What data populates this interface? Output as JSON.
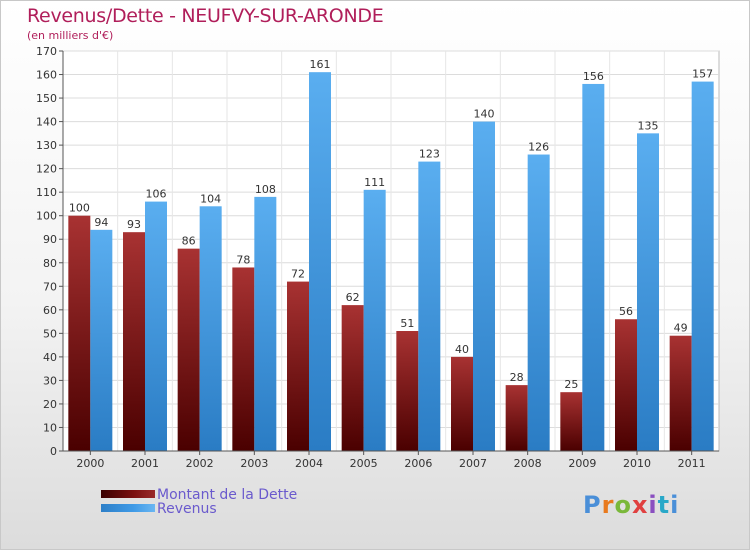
{
  "header": {
    "title": "Revenus/Dette - NEUFVY-SUR-ARONDE",
    "subtitle": "(en milliers d'€)"
  },
  "logo": {
    "text": [
      "P",
      "r",
      "o",
      "x",
      "i",
      "t",
      "i"
    ]
  },
  "colors": {
    "dette": "#7a1010",
    "revenus": "#3f9ae6",
    "title": "#b01e5a",
    "legend_text": "#6a5acd"
  },
  "chart_data": {
    "type": "bar",
    "title": "Revenus/Dette - NEUFVY-SUR-ARONDE",
    "subtitle": "(en milliers d'€)",
    "categories": [
      "2000",
      "2001",
      "2002",
      "2003",
      "2004",
      "2005",
      "2006",
      "2007",
      "2008",
      "2009",
      "2010",
      "2011"
    ],
    "series": [
      {
        "name": "Montant de la Dette",
        "values": [
          100,
          93,
          86,
          78,
          72,
          62,
          51,
          40,
          28,
          25,
          56,
          49
        ]
      },
      {
        "name": "Revenus",
        "values": [
          94,
          106,
          104,
          108,
          161,
          111,
          123,
          140,
          126,
          156,
          135,
          157
        ]
      }
    ],
    "ylim": [
      0,
      170
    ],
    "yticks": [
      0,
      10,
      20,
      30,
      40,
      50,
      60,
      70,
      80,
      90,
      100,
      110,
      120,
      130,
      140,
      150,
      160,
      170
    ],
    "grid": true,
    "legend_position": "bottom-left"
  }
}
